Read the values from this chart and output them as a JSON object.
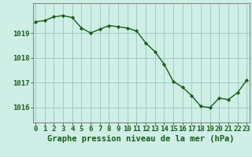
{
  "x": [
    0,
    1,
    2,
    3,
    4,
    5,
    6,
    7,
    8,
    9,
    10,
    11,
    12,
    13,
    14,
    15,
    16,
    17,
    18,
    19,
    20,
    21,
    22,
    23
  ],
  "y": [
    1019.45,
    1019.5,
    1019.65,
    1019.7,
    1019.62,
    1019.2,
    1019.0,
    1019.15,
    1019.3,
    1019.25,
    1019.2,
    1019.08,
    1018.6,
    1018.25,
    1017.75,
    1017.05,
    1016.82,
    1016.48,
    1016.05,
    1016.0,
    1016.38,
    1016.32,
    1016.6,
    1017.1
  ],
  "line_color": "#1a5c1a",
  "marker_color": "#1a5c1a",
  "bg_color": "#ceeee6",
  "grid_color": "#a0ccc4",
  "axis_color": "#1a5c1a",
  "spine_color": "#888888",
  "xlabel": "Graphe pression niveau de la mer (hPa)",
  "xlabel_ticks": [
    "0",
    "1",
    "2",
    "3",
    "4",
    "5",
    "6",
    "7",
    "8",
    "9",
    "10",
    "11",
    "12",
    "13",
    "14",
    "15",
    "16",
    "17",
    "18",
    "19",
    "20",
    "21",
    "22",
    "23"
  ],
  "yticks": [
    1016,
    1017,
    1018,
    1019
  ],
  "ylim": [
    1015.4,
    1020.2
  ],
  "xlim": [
    -0.3,
    23.3
  ],
  "xlabel_fontsize": 7.5,
  "tick_fontsize": 6.5
}
